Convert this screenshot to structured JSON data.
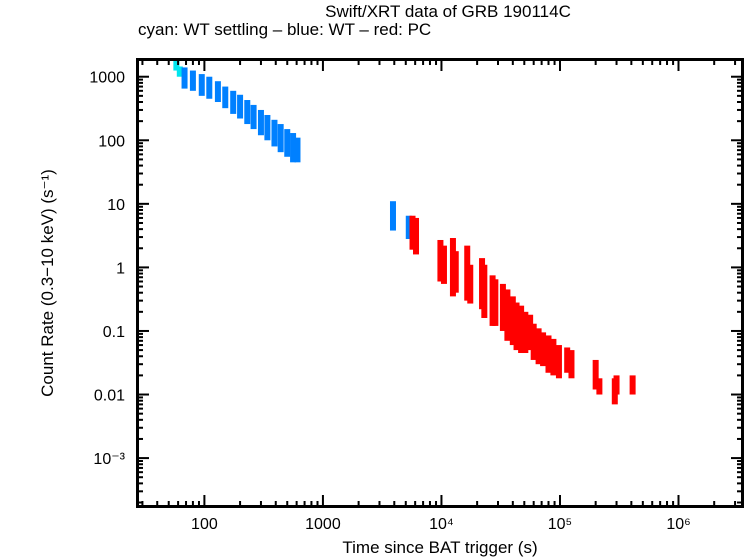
{
  "chart_data": {
    "type": "scatter",
    "title": "Swift/XRT data of GRB 190114C",
    "subtitle": "cyan: WT settling – blue: WT – red: PC",
    "xlabel": "Time since BAT trigger (s)",
    "ylabel": "Count Rate (0.3−10 keV) (s⁻¹)",
    "xscale": "log",
    "yscale": "log",
    "xlim": [
      27,
      3500000
    ],
    "ylim": [
      0.00017,
      1900
    ],
    "x_tick_labels": [
      "100",
      "1000",
      "10⁴",
      "10⁵",
      "10⁶"
    ],
    "x_ticks": [
      100,
      1000,
      10000,
      100000,
      1000000
    ],
    "y_tick_labels": [
      "1000",
      "100",
      "10",
      "1",
      "0.1",
      "0.01",
      "10⁻³"
    ],
    "y_ticks": [
      1000,
      100,
      10,
      1,
      0.1,
      0.01,
      0.001
    ],
    "grid": false,
    "series": [
      {
        "name": "WT settling",
        "color": "#00e5ee",
        "points": [
          [
            58,
            1500,
            1250,
            1800
          ],
          [
            62,
            1200,
            1000,
            1450
          ]
        ]
      },
      {
        "name": "WT",
        "color": "#0080ff",
        "points": [
          [
            68,
            1100,
            650,
            1400
          ],
          [
            80,
            900,
            600,
            1250
          ],
          [
            95,
            800,
            500,
            1100
          ],
          [
            110,
            700,
            450,
            1000
          ],
          [
            130,
            600,
            400,
            850
          ],
          [
            150,
            500,
            320,
            700
          ],
          [
            175,
            420,
            260,
            600
          ],
          [
            200,
            360,
            220,
            520
          ],
          [
            230,
            300,
            180,
            430
          ],
          [
            260,
            250,
            150,
            360
          ],
          [
            300,
            200,
            120,
            300
          ],
          [
            340,
            170,
            100,
            250
          ],
          [
            390,
            140,
            80,
            210
          ],
          [
            440,
            120,
            65,
            180
          ],
          [
            500,
            95,
            55,
            150
          ],
          [
            560,
            80,
            45,
            130
          ],
          [
            610,
            75,
            45,
            110
          ],
          [
            3900,
            7.5,
            3.8,
            11
          ],
          [
            5300,
            4.5,
            2.8,
            6.5
          ]
        ]
      },
      {
        "name": "PC",
        "color": "#ff0000",
        "points": [
          [
            5700,
            4.0,
            1.9,
            6.5
          ],
          [
            6100,
            3.5,
            1.6,
            6.0
          ],
          [
            9800,
            1.6,
            0.6,
            2.7
          ],
          [
            10500,
            1.2,
            0.55,
            2.2
          ],
          [
            12500,
            1.0,
            0.35,
            2.9
          ],
          [
            13200,
            0.9,
            0.4,
            1.8
          ],
          [
            16500,
            0.8,
            0.3,
            2.2
          ],
          [
            17500,
            0.6,
            0.27,
            1.1
          ],
          [
            22000,
            0.55,
            0.22,
            1.4
          ],
          [
            23000,
            0.45,
            0.16,
            1.1
          ],
          [
            27000,
            0.35,
            0.12,
            0.75
          ],
          [
            28500,
            0.3,
            0.12,
            0.65
          ],
          [
            33000,
            0.22,
            0.1,
            0.55
          ],
          [
            36000,
            0.17,
            0.07,
            0.45
          ],
          [
            40000,
            0.2,
            0.06,
            0.35
          ],
          [
            43000,
            0.13,
            0.05,
            0.28
          ],
          [
            47000,
            0.1,
            0.045,
            0.25
          ],
          [
            51000,
            0.1,
            0.045,
            0.2
          ],
          [
            56000,
            0.11,
            0.05,
            0.18
          ],
          [
            60000,
            0.08,
            0.035,
            0.13
          ],
          [
            66000,
            0.07,
            0.03,
            0.11
          ],
          [
            72000,
            0.06,
            0.028,
            0.095
          ],
          [
            80000,
            0.055,
            0.022,
            0.085
          ],
          [
            88000,
            0.05,
            0.02,
            0.075
          ],
          [
            98000,
            0.04,
            0.018,
            0.06
          ],
          [
            115000,
            0.035,
            0.022,
            0.055
          ],
          [
            125000,
            0.03,
            0.018,
            0.05
          ],
          [
            200000,
            0.02,
            0.012,
            0.035
          ],
          [
            215000,
            0.013,
            0.01,
            0.018
          ],
          [
            290000,
            0.011,
            0.007,
            0.018
          ],
          [
            300000,
            0.014,
            0.01,
            0.02
          ],
          [
            410000,
            0.013,
            0.01,
            0.02
          ]
        ]
      }
    ]
  }
}
